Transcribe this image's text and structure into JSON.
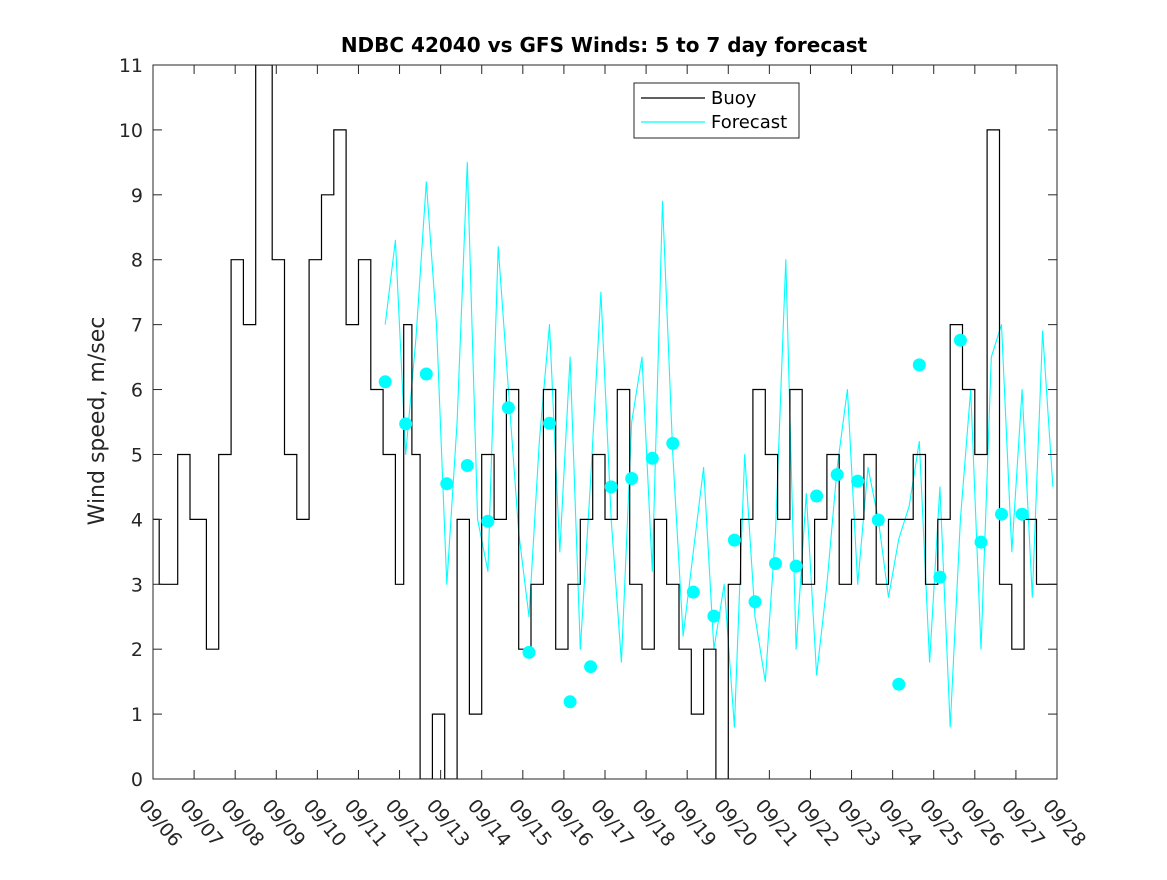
{
  "chart_data": {
    "type": "line",
    "title": "NDBC 42040 vs GFS Winds: 5 to 7 day forecast",
    "xlabel": "",
    "ylabel": "Wind speed, m/sec",
    "xlim": [
      0,
      22
    ],
    "ylim": [
      0,
      11
    ],
    "y_ticks": [
      "0",
      "1",
      "2",
      "3",
      "4",
      "5",
      "6",
      "7",
      "8",
      "9",
      "10",
      "11"
    ],
    "x_tick_labels": [
      "09/06",
      "09/07",
      "09/08",
      "09/09",
      "09/10",
      "09/11",
      "09/12",
      "09/13",
      "09/14",
      "09/15",
      "09/16",
      "09/17",
      "09/18",
      "09/19",
      "09/20",
      "09/21",
      "09/22",
      "09/23",
      "09/24",
      "09/25",
      "09/26",
      "09/27",
      "09/28"
    ],
    "grid": false,
    "legend": {
      "position": "top-center",
      "entries": [
        "Buoy",
        "Forecast"
      ]
    },
    "colors": {
      "buoy": "#000000",
      "forecast": "#00FFFF",
      "axis": "#262626"
    },
    "series": [
      {
        "name": "Buoy",
        "x_units": "days since 09/06",
        "x": [
          0.0,
          0.15,
          0.4,
          0.6,
          0.9,
          1.3,
          1.6,
          1.9,
          2.2,
          2.5,
          2.9,
          3.2,
          3.5,
          3.8,
          4.1,
          4.4,
          4.7,
          5.0,
          5.3,
          5.6,
          5.9,
          6.1,
          6.3,
          6.5,
          6.8,
          7.1,
          7.4,
          7.7,
          8.0,
          8.3,
          8.6,
          8.9,
          9.2,
          9.5,
          9.8,
          10.1,
          10.4,
          10.7,
          11.0,
          11.3,
          11.6,
          11.9,
          12.2,
          12.5,
          12.8,
          13.1,
          13.4,
          13.7,
          14.0,
          14.3,
          14.6,
          14.9,
          15.2,
          15.5,
          15.8,
          16.1,
          16.4,
          16.7,
          17.0,
          17.3,
          17.6,
          17.9,
          18.2,
          18.5,
          18.8,
          19.1,
          19.4,
          19.7,
          20.0,
          20.3,
          20.6,
          20.9,
          21.2,
          21.5,
          21.8,
          22.0
        ],
        "values": [
          4,
          3,
          3,
          5,
          4,
          2,
          5,
          8,
          7,
          11,
          8,
          5,
          4,
          8,
          9,
          10,
          7,
          8,
          6,
          5,
          3,
          7,
          5,
          0,
          1,
          0,
          4,
          1,
          5,
          4,
          6,
          2,
          3,
          6,
          2,
          3,
          4,
          5,
          4,
          6,
          3,
          2,
          4,
          3,
          2,
          1,
          2,
          0,
          3,
          4,
          6,
          5,
          4,
          6,
          3,
          4,
          5,
          3,
          4,
          5,
          3,
          4,
          4,
          5,
          3,
          4,
          7,
          6,
          5,
          10,
          3,
          2,
          4,
          3,
          3,
          3
        ]
      },
      {
        "name": "Forecast",
        "x_units": "days since 09/06",
        "x": [
          5.65,
          5.9,
          6.15,
          6.4,
          6.65,
          6.9,
          7.15,
          7.4,
          7.65,
          7.9,
          8.15,
          8.4,
          8.65,
          8.9,
          9.15,
          9.4,
          9.65,
          9.9,
          10.15,
          10.4,
          10.65,
          10.9,
          11.15,
          11.4,
          11.65,
          11.9,
          12.15,
          12.4,
          12.65,
          12.9,
          13.15,
          13.4,
          13.65,
          13.9,
          14.15,
          14.4,
          14.65,
          14.9,
          15.15,
          15.4,
          15.65,
          15.9,
          16.15,
          16.4,
          16.65,
          16.9,
          17.15,
          17.4,
          17.65,
          17.9,
          18.15,
          18.4,
          18.65,
          18.9,
          19.15,
          19.4,
          19.65,
          19.9,
          20.15,
          20.4,
          20.65,
          20.9,
          21.15,
          21.4,
          21.65,
          21.9
        ],
        "values": [
          7.0,
          8.3,
          5.0,
          6.8,
          9.2,
          7.0,
          3.0,
          5.5,
          9.5,
          4.0,
          3.2,
          8.2,
          6.0,
          3.8,
          2.5,
          5.2,
          7.0,
          3.5,
          6.5,
          2.0,
          4.6,
          7.5,
          4.0,
          1.8,
          5.5,
          6.5,
          3.2,
          8.9,
          5.0,
          2.2,
          3.5,
          4.8,
          2.0,
          3.0,
          0.8,
          5.0,
          2.5,
          1.5,
          3.8,
          8.0,
          2.0,
          4.4,
          1.6,
          3.0,
          4.8,
          6.0,
          3.0,
          4.8,
          4.0,
          2.8,
          3.7,
          4.2,
          5.2,
          1.8,
          4.5,
          0.8,
          4.0,
          6.0,
          2.0,
          6.5,
          7.0,
          3.5,
          6.0,
          2.8,
          6.9,
          4.5
        ]
      },
      {
        "name": "Forecast mean (dots)",
        "x_units": "days since 09/06",
        "x": [
          5.65,
          6.15,
          6.65,
          7.15,
          7.65,
          8.15,
          8.65,
          9.15,
          9.65,
          10.15,
          10.65,
          11.15,
          11.65,
          12.15,
          12.65,
          13.15,
          13.65,
          14.15,
          14.65,
          15.15,
          15.65,
          16.15,
          16.65,
          17.15,
          17.65,
          18.15,
          18.65,
          19.15,
          19.65,
          20.15,
          20.65,
          21.15
        ],
        "values": [
          6.12,
          5.47,
          6.24,
          4.55,
          4.83,
          3.97,
          5.72,
          1.95,
          5.48,
          1.19,
          1.73,
          4.5,
          4.63,
          4.94,
          5.17,
          2.88,
          2.51,
          3.68,
          2.73,
          3.32,
          3.28,
          4.36,
          4.69,
          4.59,
          3.99,
          1.46,
          6.38,
          3.11,
          6.76,
          3.65,
          4.08,
          4.08
        ]
      }
    ]
  }
}
